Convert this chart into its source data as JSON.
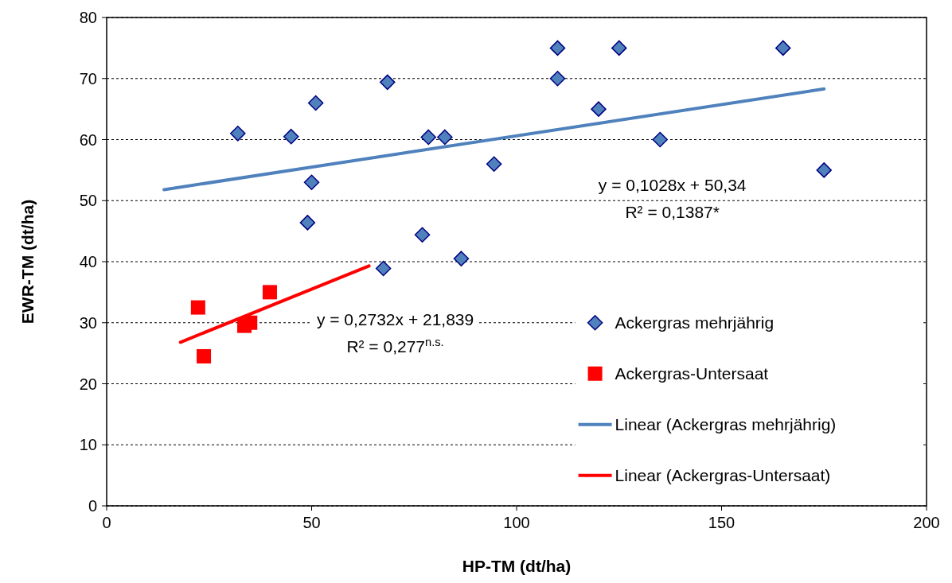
{
  "chart_data": {
    "type": "scatter",
    "xlabel": "HP-TM (dt/ha)",
    "ylabel": "EWR-TM (dt/ha)",
    "xlim": [
      0,
      200
    ],
    "xticks": [
      0,
      50,
      100,
      150,
      200
    ],
    "ylim": [
      0,
      80
    ],
    "yticks": [
      0,
      10,
      20,
      30,
      40,
      50,
      60,
      70,
      80
    ],
    "grid": "y",
    "legend": "bottom right",
    "series": [
      {
        "name": "Ackergras mehrjährig",
        "marker": "diamond",
        "color": "#4f81bd",
        "x": [
          32,
          45,
          51,
          50,
          49,
          68.5,
          67.5,
          78.5,
          82.5,
          77,
          86.5,
          94.5,
          110,
          110,
          120,
          125,
          135,
          165,
          175
        ],
        "values": [
          61,
          60.5,
          66,
          53,
          46.4,
          69.4,
          38.9,
          60.4,
          60.4,
          44.4,
          40.5,
          56,
          75,
          70,
          65,
          75,
          60,
          75,
          55
        ]
      },
      {
        "name": "Ackergras-Untersaat",
        "marker": "square",
        "color": "#ff0000",
        "x": [
          22.3,
          23.7,
          33.6,
          35,
          39.8
        ],
        "values": [
          32.5,
          24.5,
          29.5,
          30,
          35
        ]
      },
      {
        "name": "Linear (Ackergras mehrjährig)",
        "type": "line",
        "color": "#4f81bd",
        "x": [
          14,
          175
        ],
        "values": [
          51.8,
          68.3
        ]
      },
      {
        "name": "Linear (Ackergras-Untersaat)",
        "type": "line",
        "color": "#ff0000",
        "x": [
          18,
          64
        ],
        "values": [
          26.8,
          39.3
        ]
      }
    ],
    "annotations": [
      "y = 0,1028x + 50,34",
      "R² = 0,1387*",
      "y = 0,2732x + 21,839",
      "R² = 0,277$^{n.s.}$"
    ]
  }
}
